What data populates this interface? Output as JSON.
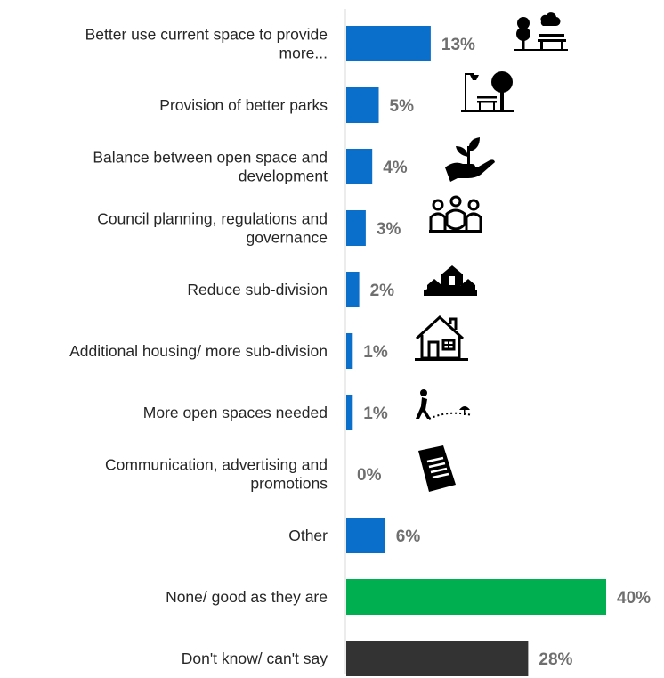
{
  "chart_data": {
    "type": "bar",
    "orientation": "horizontal",
    "title": "",
    "xlabel": "",
    "ylabel": "",
    "xlim": [
      0,
      40
    ],
    "grid": false,
    "legend": "none",
    "value_format": "percent",
    "categories": [
      [
        "Better use current space to provide",
        "more..."
      ],
      [
        "Provision of better parks"
      ],
      [
        "Balance between open space and",
        "development"
      ],
      [
        "Council planning, regulations and",
        "governance"
      ],
      [
        "Reduce sub-division"
      ],
      [
        "Additional housing/ more sub-division"
      ],
      [
        "More open spaces needed"
      ],
      [
        "Communication, advertising and",
        "promotions"
      ],
      [
        "Other"
      ],
      [
        "None/ good as they are"
      ],
      [
        "Don't know/ can't say"
      ]
    ],
    "values": [
      13,
      5,
      4,
      3,
      2,
      1,
      1,
      0,
      6,
      40,
      28
    ],
    "labels": [
      "13%",
      "5%",
      "4%",
      "3%",
      "2%",
      "1%",
      "1%",
      "0%",
      "6%",
      "40%",
      "28%"
    ],
    "colors": [
      "#0a6ecb",
      "#0a6ecb",
      "#0a6ecb",
      "#0a6ecb",
      "#0a6ecb",
      "#0a6ecb",
      "#0a6ecb",
      "#0a6ecb",
      "#0a6ecb",
      "#00b050",
      "#333333"
    ],
    "icons": [
      "park-bench-trees-icon",
      "street-lamp-bench-icon",
      "hand-plant-icon",
      "council-people-icon",
      "houses-hill-icon",
      "house-icon",
      "person-walking-icon",
      "brochure-icon",
      null,
      null,
      null
    ]
  }
}
